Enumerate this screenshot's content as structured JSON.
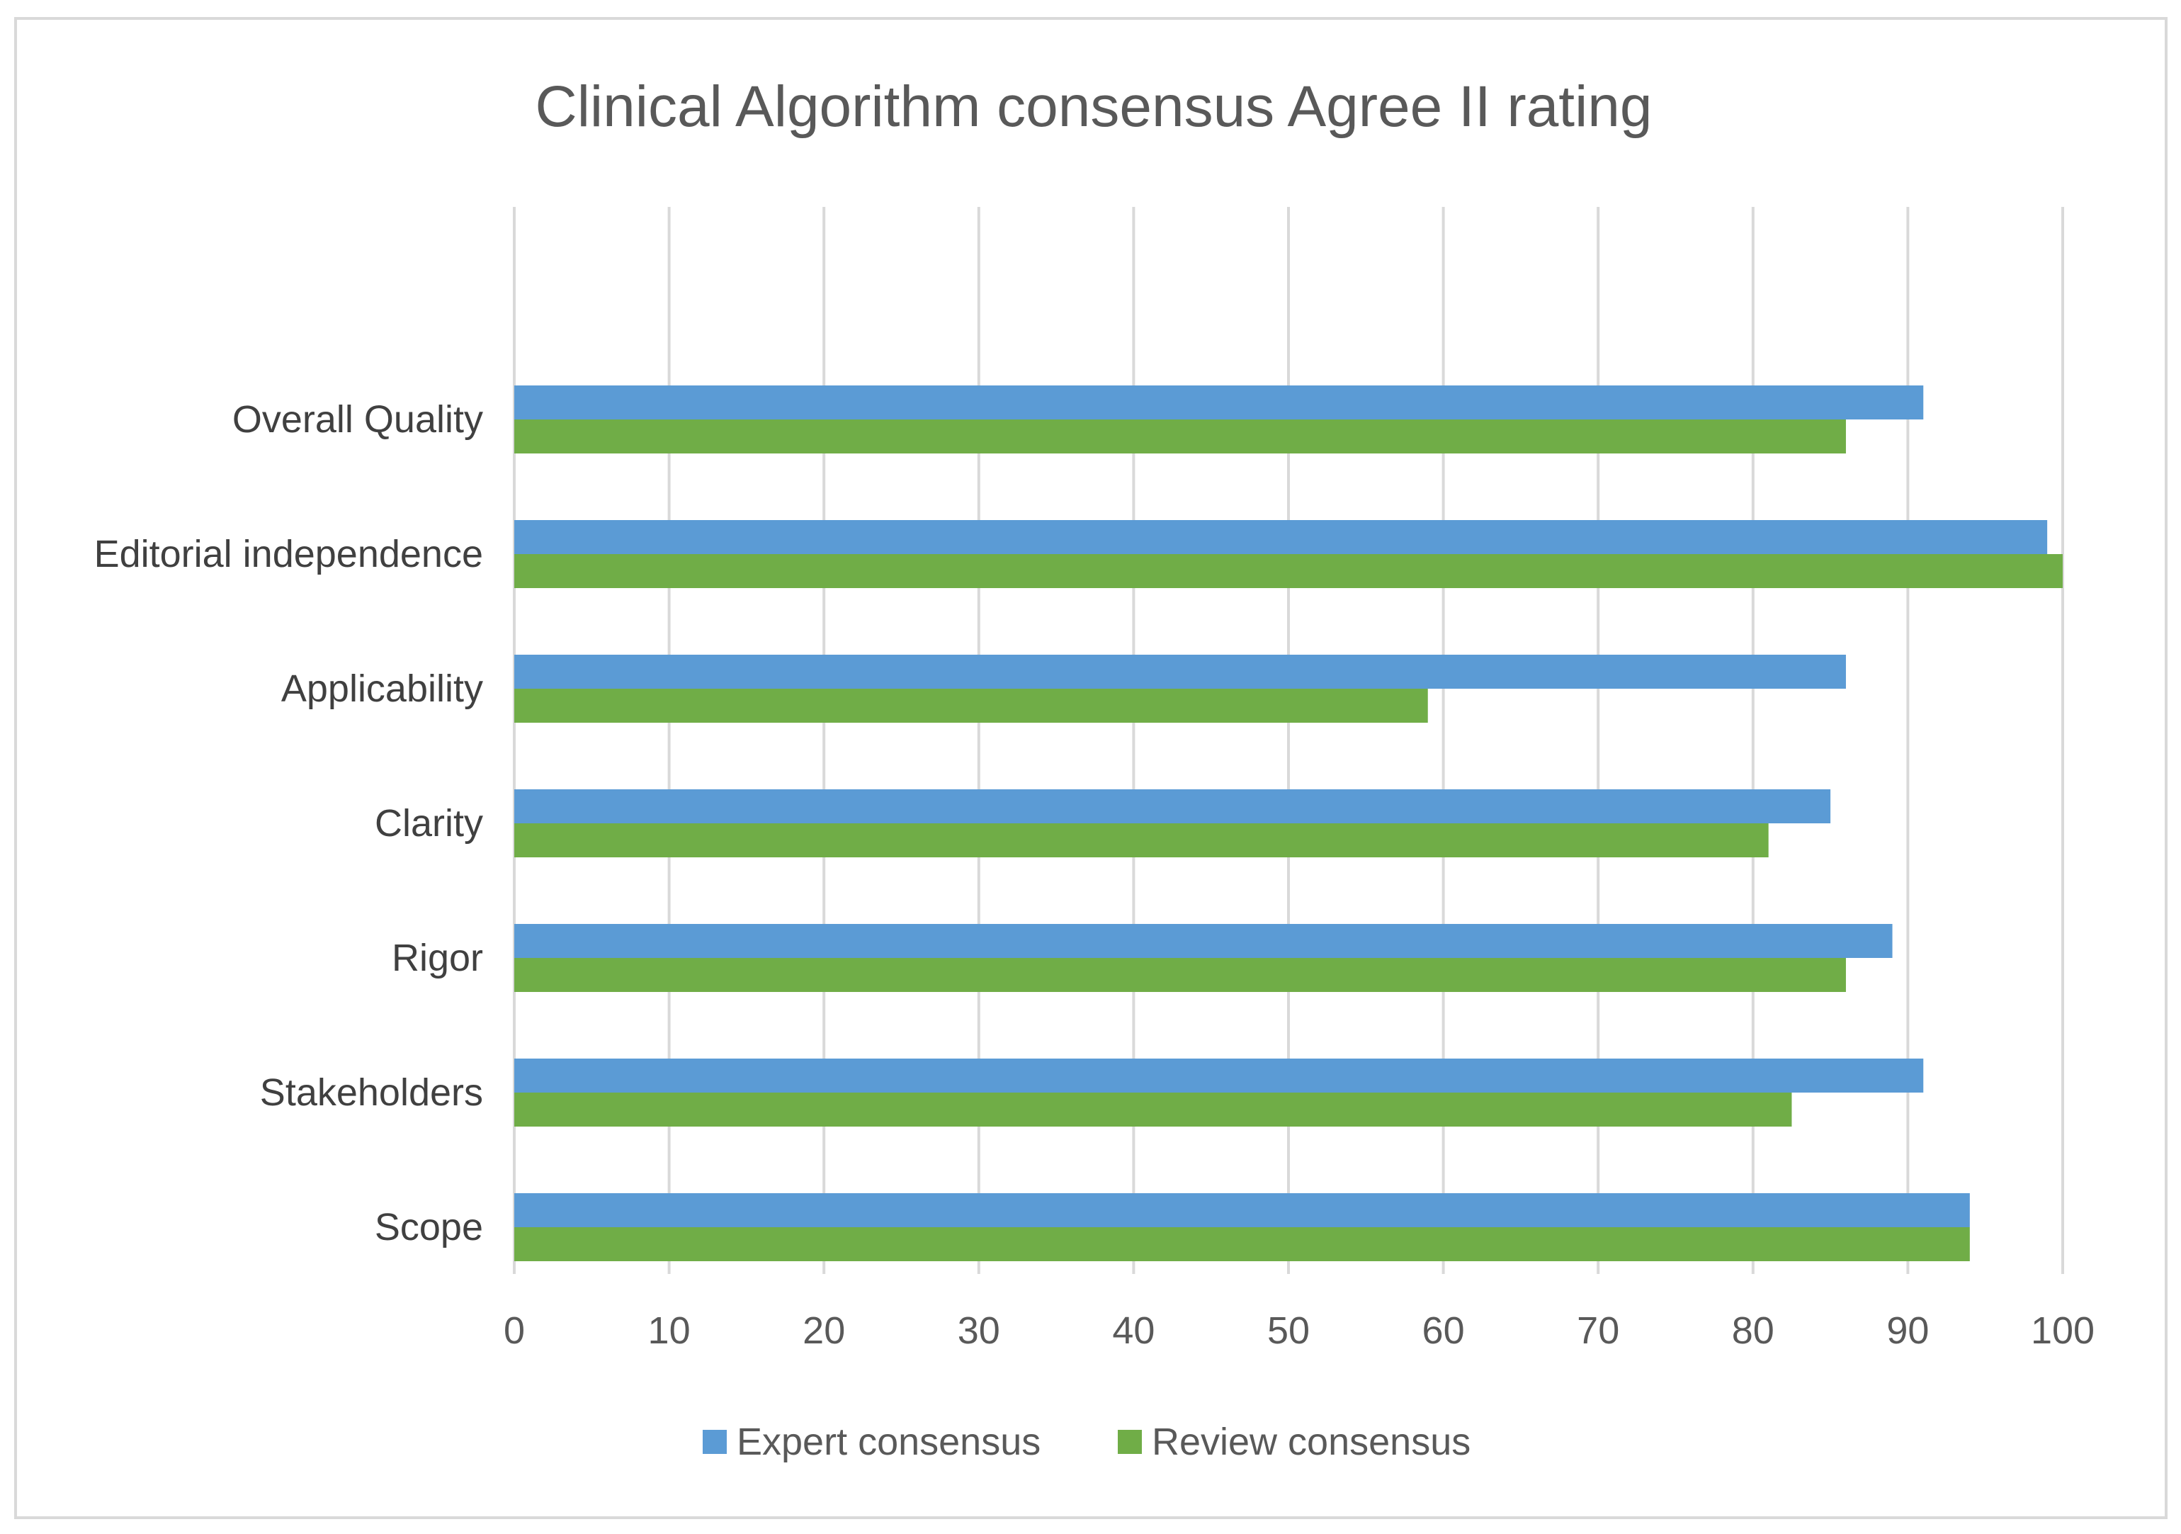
{
  "chart_data": {
    "type": "bar",
    "orientation": "horizontal",
    "title": "Clinical Algorithm consensus Agree II rating",
    "categories": [
      "Scope",
      "Stakeholders",
      "Rigor",
      "Clarity",
      "Applicability",
      "Editorial independence",
      "Overall Quality"
    ],
    "series": [
      {
        "name": "Expert consensus",
        "color": "#5b9bd5",
        "values": [
          94,
          91,
          89,
          85,
          86,
          99,
          91
        ]
      },
      {
        "name": "Review consensus",
        "color": "#70ad47",
        "values": [
          94,
          82.5,
          86,
          81,
          59,
          100,
          86
        ]
      }
    ],
    "xlim": [
      0,
      100
    ],
    "xticks": [
      0,
      10,
      20,
      30,
      40,
      50,
      60,
      70,
      80,
      90,
      100
    ],
    "xlabel": "",
    "ylabel": "",
    "grid": true,
    "legend_position": "bottom"
  }
}
